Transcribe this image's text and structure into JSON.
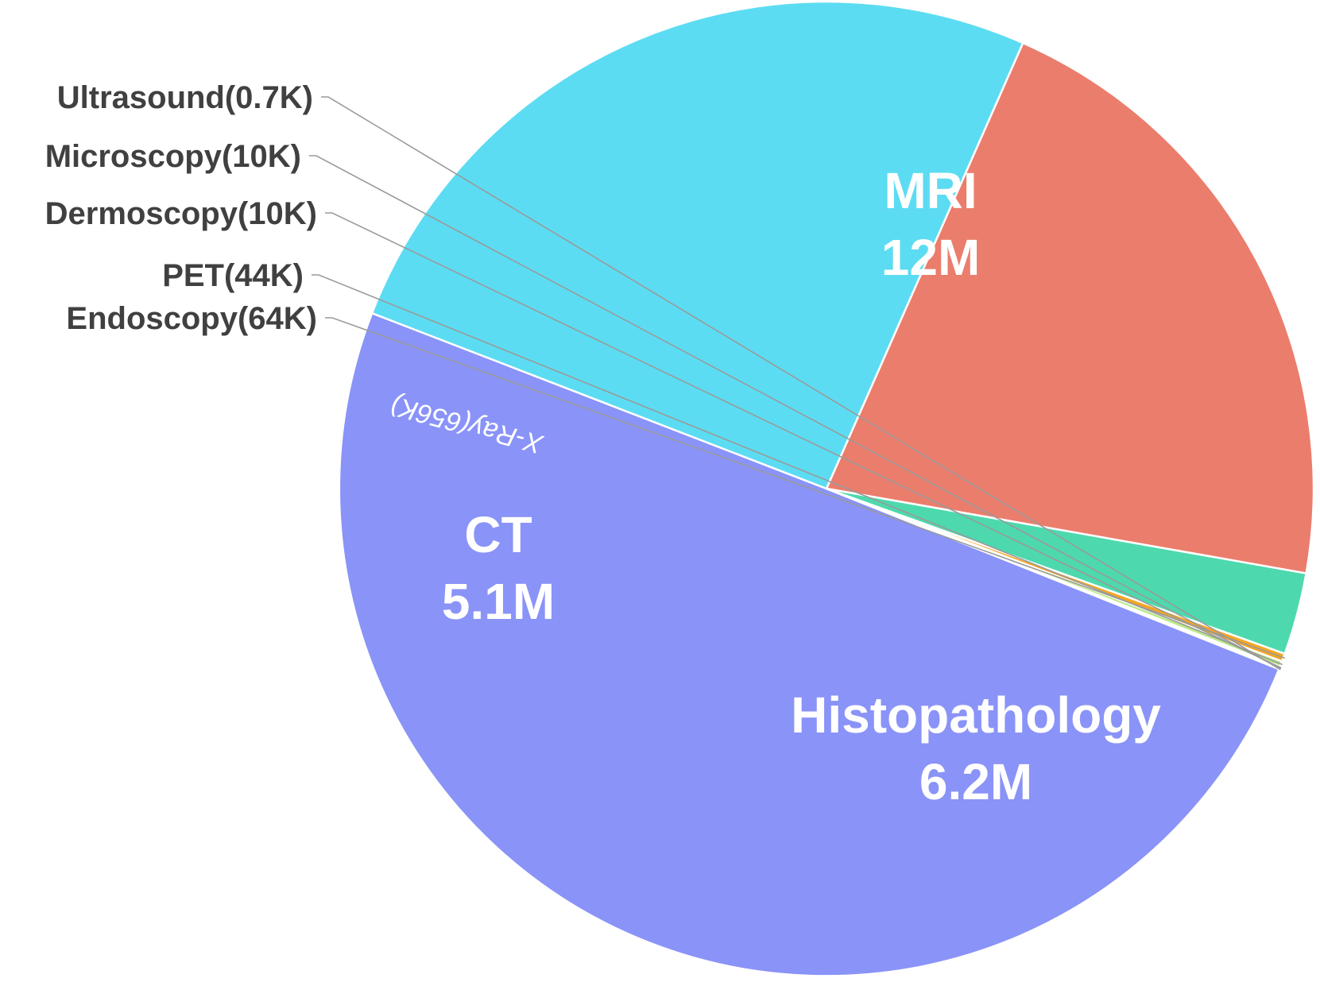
{
  "chart_data": {
    "type": "pie",
    "title": "",
    "slices": [
      {
        "name": "MRI",
        "value": 12000000,
        "value_label": "12M",
        "color": "#8a93f7"
      },
      {
        "name": "Histopathology",
        "value": 6200000,
        "value_label": "6.2M",
        "color": "#5cdcf2"
      },
      {
        "name": "CT",
        "value": 5100000,
        "value_label": "5.1M",
        "color": "#eb7d6c"
      },
      {
        "name": "X-Ray",
        "value": 656000,
        "value_label": "656K",
        "label": "X-Ray(656K)",
        "color": "#4dd9ad"
      },
      {
        "name": "Endoscopy",
        "value": 64000,
        "value_label": "64K",
        "label": "Endoscopy(64K)",
        "color": "#f5a623"
      },
      {
        "name": "PET",
        "value": 44000,
        "value_label": "44K",
        "label": "PET(44K)",
        "color": "#b8e986"
      },
      {
        "name": "Dermoscopy",
        "value": 10000,
        "value_label": "10K",
        "label": "Dermoscopy(10K)",
        "color": "#62b8e8"
      },
      {
        "name": "Microscopy",
        "value": 10000,
        "value_label": "10K",
        "label": "Microscopy(10K)",
        "color": "#9b6fd6"
      },
      {
        "name": "Ultrasound",
        "value": 700,
        "value_label": "0.7K",
        "label": "Ultrasound(0.7K)",
        "color": "#f06292"
      }
    ]
  }
}
